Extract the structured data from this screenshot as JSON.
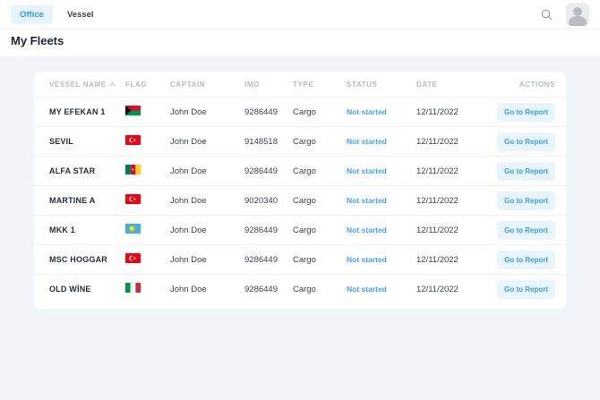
{
  "topbar": {
    "tabs": [
      {
        "id": "office",
        "label": "Office",
        "active": true
      },
      {
        "id": "vessel",
        "label": "Vessel",
        "active": false
      }
    ],
    "icons": {
      "search": "search-icon",
      "avatar": "user-avatar"
    }
  },
  "page": {
    "title": "My Fleets"
  },
  "table": {
    "headers": {
      "vessel": "Vessel Name",
      "flag": "Flag",
      "captain": "Captain",
      "imo": "IMO",
      "type": "Type",
      "status": "Status",
      "date": "Date",
      "actions": "Actions"
    },
    "sort": {
      "column": "Vessel Name",
      "direction": "asc",
      "icon": "sort-asc-icon"
    },
    "rows": [
      {
        "vessel": "MY EFEKAN 1",
        "flag": "vanuatu",
        "captain": "John Doe",
        "imo": "9286449",
        "type": "Cargo",
        "status": "Not started",
        "date": "12/11/2022",
        "action": "Go to Report"
      },
      {
        "vessel": "SEVIL",
        "flag": "turkey",
        "captain": "John Doe",
        "imo": "9148518",
        "type": "Cargo",
        "status": "Not started",
        "date": "12/11/2022",
        "action": "Go to Report"
      },
      {
        "vessel": "ALFA STAR",
        "flag": "cameroon",
        "captain": "John Doe",
        "imo": "9286449",
        "type": "Cargo",
        "status": "Not started",
        "date": "12/11/2022",
        "action": "Go to Report"
      },
      {
        "vessel": "MARTINE A",
        "flag": "turkey",
        "captain": "John Doe",
        "imo": "9020340",
        "type": "Cargo",
        "status": "Not started",
        "date": "12/11/2022",
        "action": "Go to Report"
      },
      {
        "vessel": "MKK 1",
        "flag": "palau",
        "captain": "John Doe",
        "imo": "9286449",
        "type": "Cargo",
        "status": "Not started",
        "date": "12/11/2022",
        "action": "Go to Report"
      },
      {
        "vessel": "MSC HOGGAR",
        "flag": "turkey",
        "captain": "John Doe",
        "imo": "9286449",
        "type": "Cargo",
        "status": "Not started",
        "date": "12/11/2022",
        "action": "Go to Report"
      },
      {
        "vessel": "OLD WİNE",
        "flag": "italy",
        "captain": "John Doe",
        "imo": "9286449",
        "type": "Cargo",
        "status": "Not started",
        "date": "12/11/2022",
        "action": "Go to Report"
      }
    ]
  },
  "colors": {
    "accent_blue": "#2d9ce4",
    "status_blue": "#46a4e7",
    "button_bg": "#e9f5fd",
    "page_bg": "#f1f4f8"
  }
}
